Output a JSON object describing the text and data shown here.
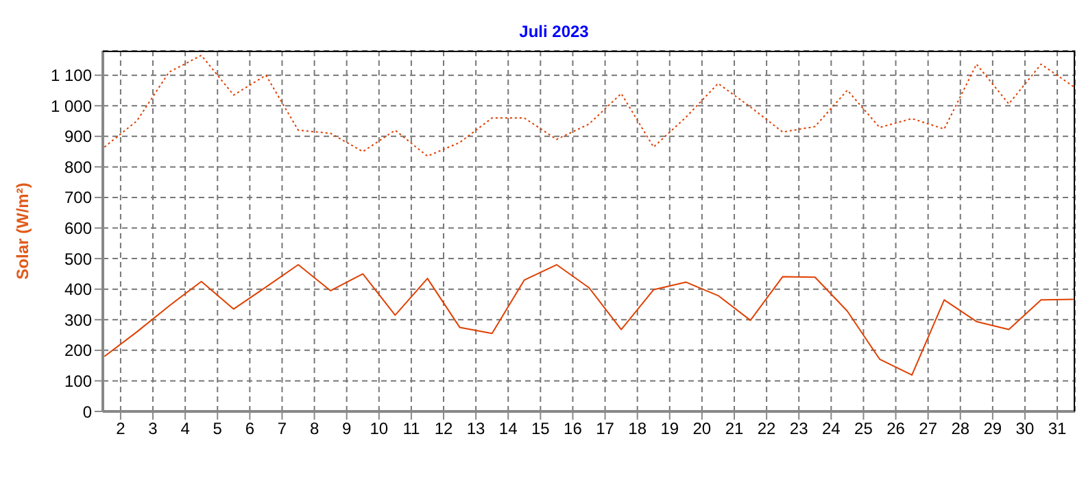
{
  "chart_data": {
    "type": "line",
    "title": "Juli 2023",
    "ylabel": "Solar  (W/m²)",
    "x": [
      1.5,
      2.5,
      3.5,
      4.5,
      5.5,
      6.5,
      7.5,
      8.5,
      9.5,
      10.5,
      11.5,
      12.5,
      13.5,
      14.5,
      15.5,
      16.5,
      17.5,
      18.5,
      19.5,
      20.5,
      21.5,
      22.5,
      23.5,
      24.5,
      25.5,
      26.5,
      27.5,
      28.5,
      29.5,
      30.5,
      31.5
    ],
    "series": [
      {
        "color": "#e04000",
        "line_style": "dotted",
        "values": [
          865,
          950,
          1110,
          1165,
          1035,
          1100,
          920,
          910,
          850,
          920,
          835,
          880,
          960,
          960,
          890,
          940,
          1040,
          865,
          962,
          1073,
          996,
          914,
          932,
          1051,
          929,
          958,
          924,
          1136,
          1006,
          1136,
          1063
        ]
      },
      {
        "color": "#e04000",
        "line_style": "solid",
        "values": [
          180,
          260,
          345,
          425,
          335,
          407,
          480,
          395,
          450,
          315,
          435,
          275,
          255,
          430,
          480,
          405,
          268,
          398,
          423,
          379,
          298,
          441,
          439,
          328,
          171,
          119,
          365,
          294,
          268,
          365,
          367
        ]
      }
    ],
    "xlim": [
      1.45,
      31.55
    ],
    "xticks": [
      2,
      3,
      4,
      5,
      6,
      7,
      8,
      9,
      10,
      11,
      12,
      13,
      14,
      15,
      16,
      17,
      18,
      19,
      20,
      21,
      22,
      23,
      24,
      25,
      26,
      27,
      28,
      29,
      30,
      31
    ],
    "ylim": [
      0,
      1180
    ],
    "yticks": [
      0,
      100,
      200,
      300,
      400,
      500,
      600,
      700,
      800,
      900,
      {
        "value": 1000,
        "label": "1 000"
      },
      {
        "value": 1100,
        "label": "1 100"
      }
    ],
    "grid": true,
    "marker": "none"
  }
}
